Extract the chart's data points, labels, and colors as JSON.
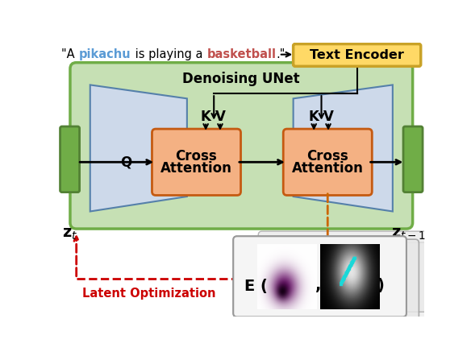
{
  "fig_width": 5.84,
  "fig_height": 4.42,
  "dpi": 100,
  "bg_color": "#ffffff",
  "text_encoder_box_color": "#ffd966",
  "text_encoder_border_color": "#c9a227",
  "text_encoder_text": "Text Encoder",
  "unet_box_color": "#c6e0b4",
  "unet_border_color": "#70ad47",
  "unet_label": "Denoising UNet",
  "hourglass_fill": "#cdd9ea",
  "hourglass_border": "#5580aa",
  "cross_attn_fill": "#f4b183",
  "cross_attn_border": "#c55a11",
  "side_rect_fill": "#70ad47",
  "side_rect_border": "#538135",
  "orange_arrow_color": "#cc6600",
  "latent_opt_color": "#cc0000",
  "latent_opt_text": "Latent Optimization"
}
